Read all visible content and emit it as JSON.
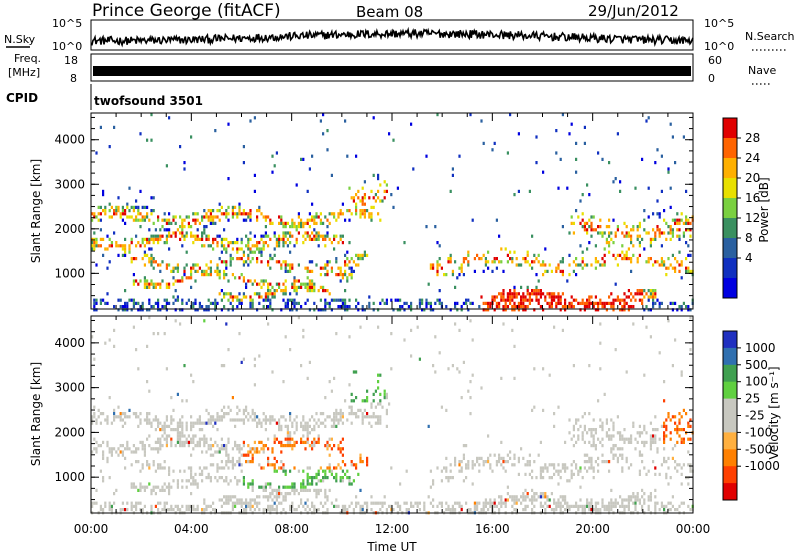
{
  "header": {
    "station": "Prince George (fitACF)",
    "beam": "Beam 08",
    "date": "29/Jun/2012"
  },
  "top_panels": {
    "nsky_label": "N.Sky",
    "nsearch_label": "N.Search",
    "nsky_ticks": [
      "10^5",
      "10^0"
    ],
    "nsearch_ticks": [
      "10^5",
      "10^0"
    ],
    "freq_label_1": "Freq.",
    "freq_label_2": "[MHz]",
    "freq_ticks": [
      "18",
      "8"
    ],
    "nave_label": "Nave",
    "nave_ticks": [
      "60",
      "0"
    ],
    "cpid_label": "CPID",
    "cpid_value": "twofsound 3501"
  },
  "chart_data": [
    {
      "type": "heatmap",
      "name": "power",
      "ylabel": "Slant Range [km]",
      "xlabel": "",
      "y_ticks": [
        1000,
        2000,
        3000,
        4000
      ],
      "ylim": [
        200,
        4600
      ],
      "xlim_hours": [
        0,
        24
      ],
      "colorbar": {
        "label": "Power [dB]",
        "ticks": [
          "28",
          "24",
          "20",
          "16",
          "12",
          "8",
          "4"
        ],
        "colors": [
          "#e00000",
          "#ff6400",
          "#ffb000",
          "#e8e000",
          "#7ad040",
          "#3a9060",
          "#2a60a0",
          "#1030c0",
          "#0000e0"
        ]
      }
    },
    {
      "type": "heatmap",
      "name": "velocity",
      "ylabel": "Slant Range [km]",
      "xlabel": "Time UT",
      "y_ticks": [
        1000,
        2000,
        3000,
        4000
      ],
      "ylim": [
        200,
        4600
      ],
      "x_ticks": [
        "00:00",
        "04:00",
        "08:00",
        "12:00",
        "16:00",
        "20:00",
        "00:00"
      ],
      "colorbar": {
        "label": "Velocity [m s⁻¹]",
        "ticks": [
          "1000",
          "500",
          "100",
          "25",
          "-25",
          "-100",
          "-500",
          "-1000"
        ],
        "colors": [
          "#2030c0",
          "#3070b0",
          "#40a050",
          "#60d040",
          "#c8c8c0",
          "#c8c8c0",
          "#ffb040",
          "#ff8000",
          "#ff4000",
          "#e00000"
        ]
      }
    }
  ]
}
